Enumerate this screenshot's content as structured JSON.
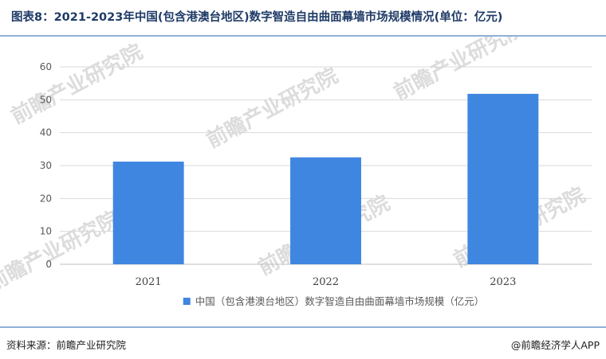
{
  "title": "图表8：2021-2023年中国(包含港澳台地区)数字智造自由曲面幕墙市场规模情况(单位：亿元)",
  "watermark": "前瞻产业研究院",
  "footer": {
    "source": "资料来源：前瞻产业研究院",
    "brand": "@前瞻经济学人APP"
  },
  "colors": {
    "bar": "#3f86e0",
    "title": "#1f3b67",
    "rule": "#8fb0d6"
  },
  "chart_data": {
    "type": "bar",
    "categories": [
      "2021",
      "2022",
      "2023"
    ],
    "series": [
      {
        "name": "中国（包含港澳台地区）数字智造自由曲面幕墙市场规模（亿元）",
        "values": [
          31.2,
          32.5,
          51.8
        ]
      }
    ],
    "ylim": [
      0,
      60
    ],
    "yticks": [
      "0",
      "10",
      "20",
      "30",
      "40",
      "50",
      "60"
    ],
    "grid": true,
    "legend": "bottom-center"
  }
}
